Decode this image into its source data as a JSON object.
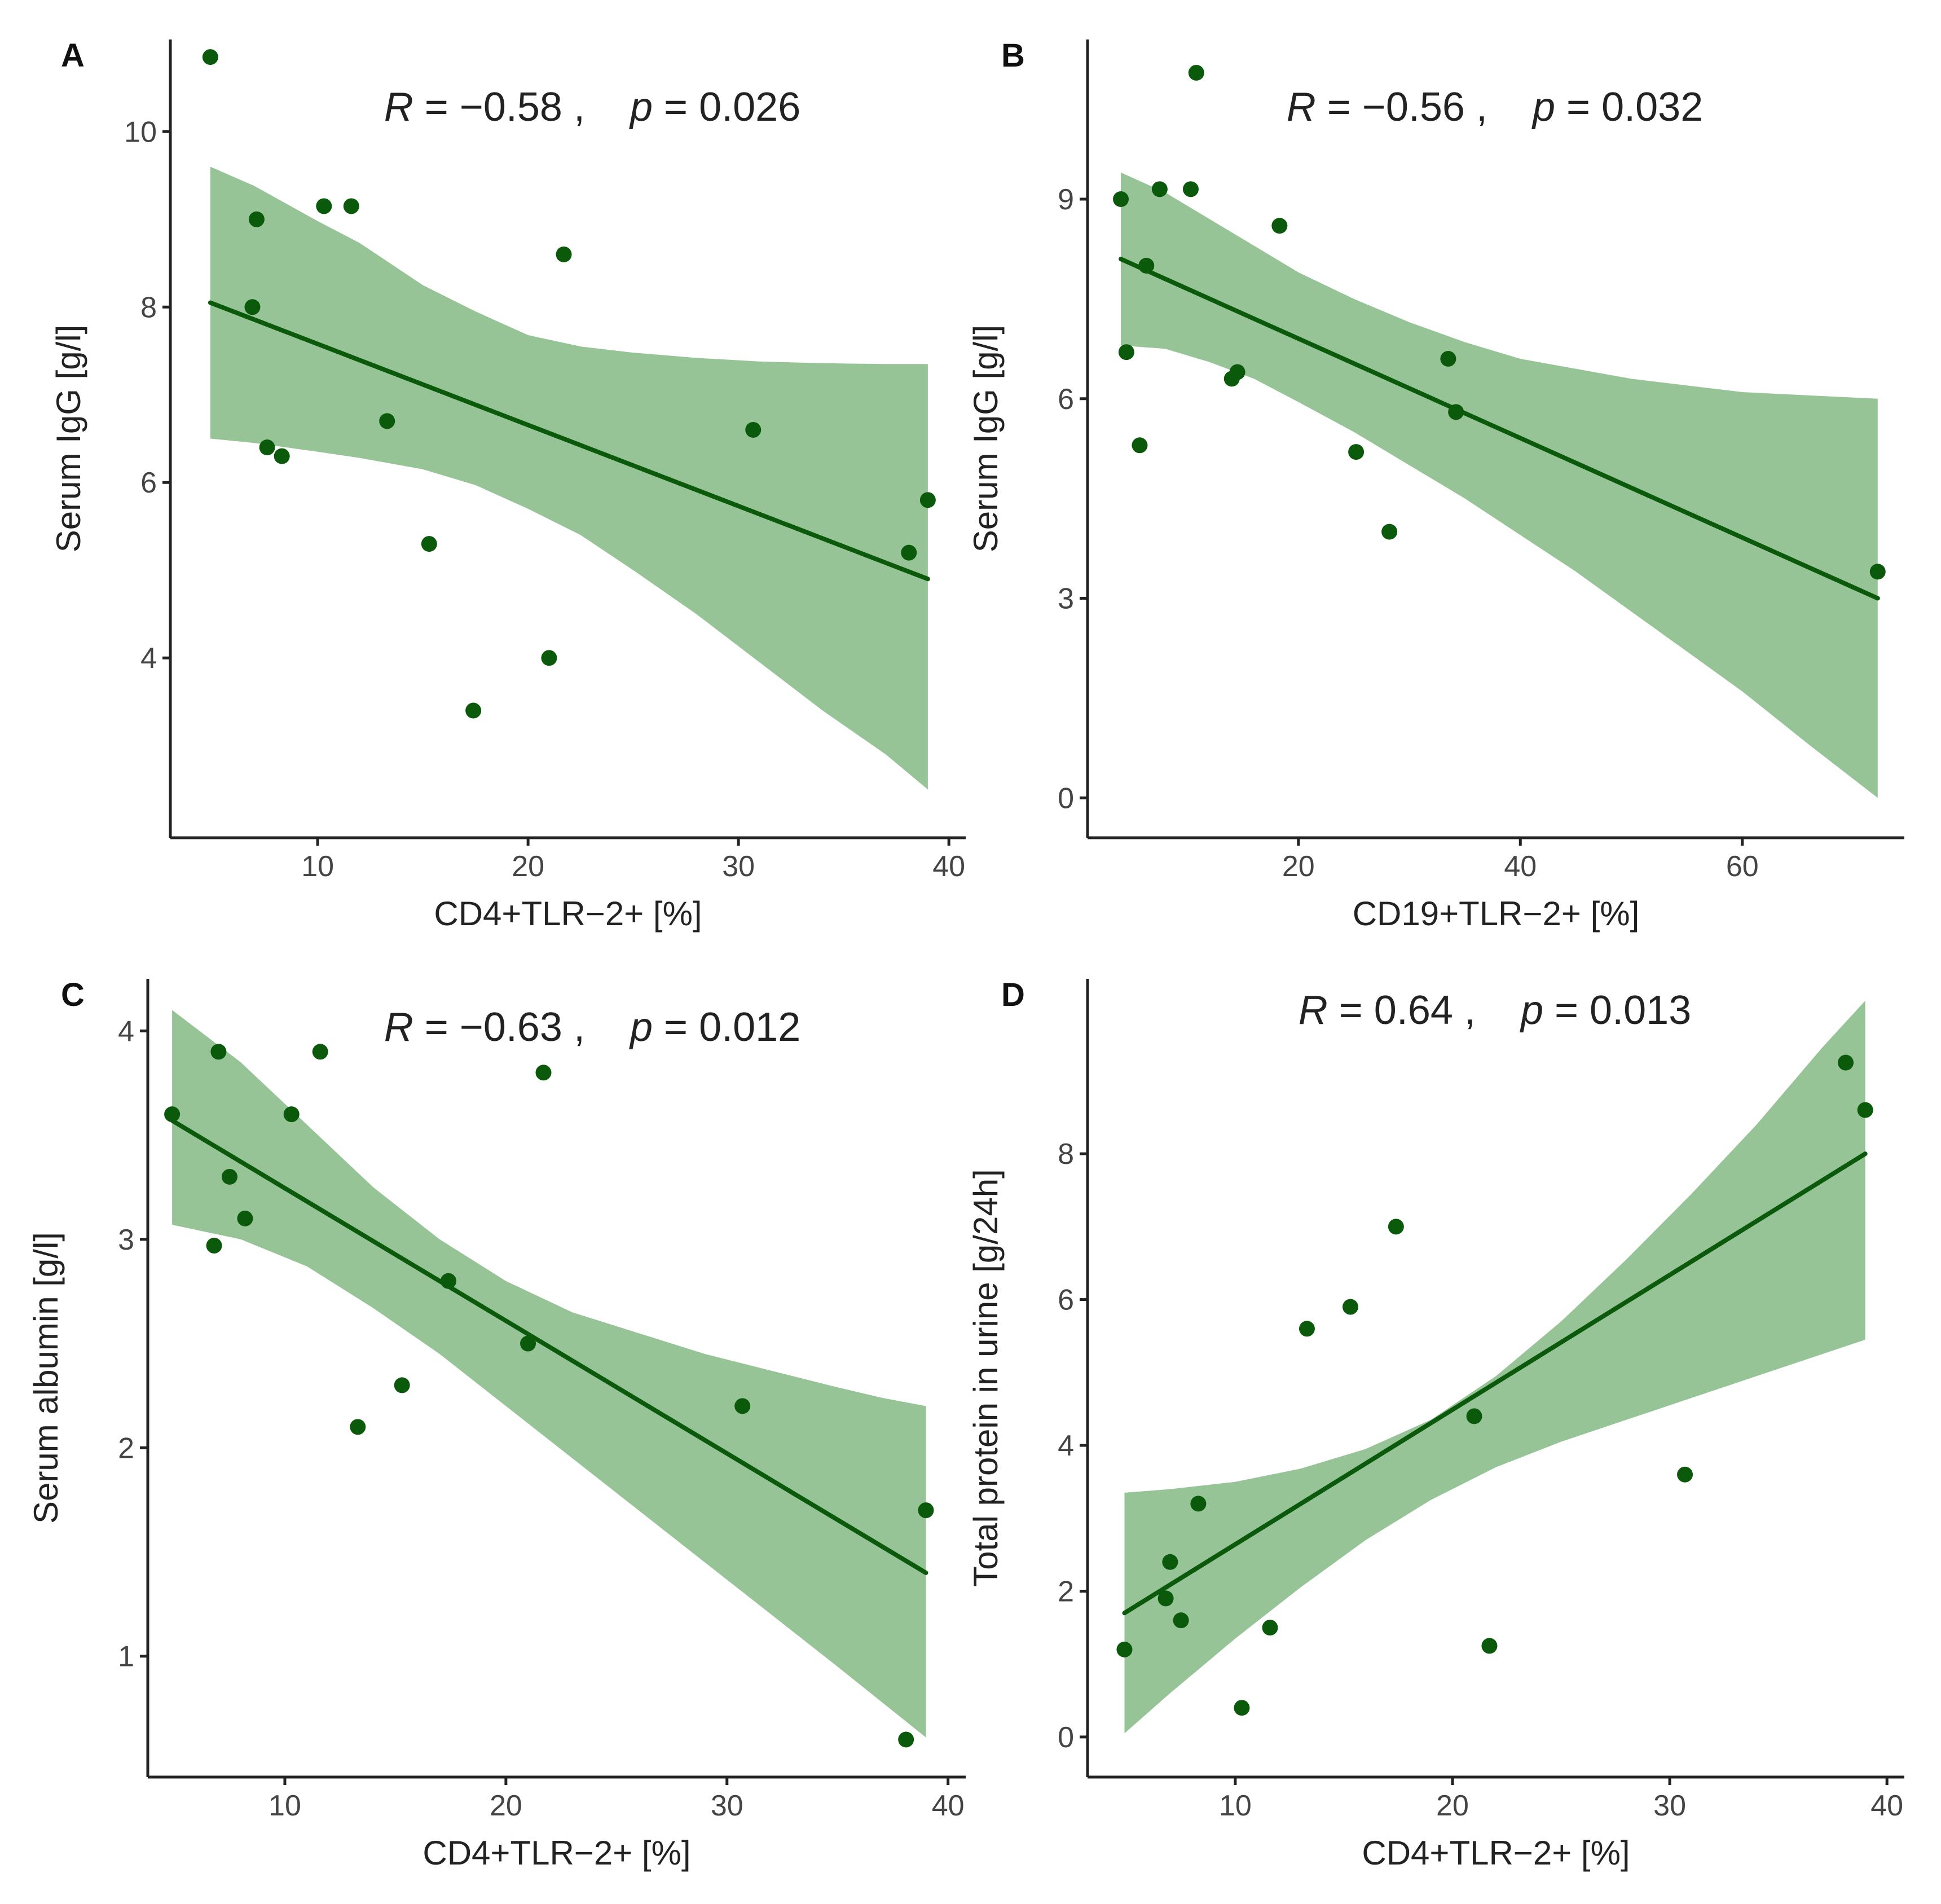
{
  "colors": {
    "point": "#0b5a0b",
    "line": "#0b5a0b",
    "band": "#97c497",
    "axis": "#222222"
  },
  "chart_data": [
    {
      "panel": "A",
      "type": "scatter",
      "stat": {
        "r_prefix": "R",
        "r_value": " = −0.58 ,",
        "p_prefix": "p",
        "p_value": " = 0.026"
      },
      "xlabel": "CD4+TLR−2+ [%]",
      "ylabel": "Serum IgG [g/l]",
      "xlim": [
        3,
        40.8
      ],
      "ylim": [
        1.95,
        11.05
      ],
      "xticks": [
        10,
        20,
        30,
        40
      ],
      "yticks": [
        4,
        6,
        8,
        10
      ],
      "points": [
        {
          "x": 4.9,
          "y": 10.85
        },
        {
          "x": 6.9,
          "y": 8.0
        },
        {
          "x": 7.1,
          "y": 9.0
        },
        {
          "x": 7.6,
          "y": 6.4
        },
        {
          "x": 8.3,
          "y": 6.3
        },
        {
          "x": 10.3,
          "y": 9.15
        },
        {
          "x": 11.6,
          "y": 9.15
        },
        {
          "x": 13.3,
          "y": 6.7
        },
        {
          "x": 15.3,
          "y": 5.3
        },
        {
          "x": 17.4,
          "y": 3.4
        },
        {
          "x": 21.0,
          "y": 4.0
        },
        {
          "x": 21.7,
          "y": 8.6
        },
        {
          "x": 30.7,
          "y": 6.6
        },
        {
          "x": 38.1,
          "y": 5.2
        },
        {
          "x": 39.0,
          "y": 5.8
        }
      ],
      "fit": {
        "x": [
          4.9,
          39.0
        ],
        "y": [
          8.05,
          4.9
        ]
      },
      "band": {
        "x": [
          4.9,
          7.0,
          10.0,
          12.0,
          15.0,
          17.5,
          20.0,
          22.5,
          25.0,
          28.0,
          31.0,
          34.0,
          37.0,
          39.0
        ],
        "lower": [
          6.5,
          6.45,
          6.35,
          6.28,
          6.15,
          5.97,
          5.7,
          5.4,
          5.0,
          4.5,
          3.95,
          3.4,
          2.9,
          2.5
        ],
        "upper": [
          9.6,
          9.38,
          8.98,
          8.73,
          8.25,
          7.95,
          7.68,
          7.55,
          7.48,
          7.42,
          7.38,
          7.36,
          7.35,
          7.35
        ]
      }
    },
    {
      "panel": "B",
      "type": "scatter",
      "stat": {
        "r_prefix": "R",
        "r_value": " = −0.56 ,",
        "p_prefix": "p",
        "p_value": " = 0.032"
      },
      "xlabel": "CD19+TLR−2+ [%]",
      "ylabel": "Serum IgG [g/l]",
      "xlim": [
        1,
        74.6
      ],
      "ylim": [
        -0.6,
        11.4
      ],
      "xticks": [
        20,
        40,
        60
      ],
      "yticks": [
        0,
        3,
        6,
        9
      ],
      "points": [
        {
          "x": 4.0,
          "y": 9.0
        },
        {
          "x": 4.5,
          "y": 6.7
        },
        {
          "x": 5.7,
          "y": 5.3
        },
        {
          "x": 6.3,
          "y": 8.0
        },
        {
          "x": 7.5,
          "y": 9.15
        },
        {
          "x": 10.3,
          "y": 9.15
        },
        {
          "x": 10.8,
          "y": 10.9
        },
        {
          "x": 14.0,
          "y": 6.3
        },
        {
          "x": 14.5,
          "y": 6.4
        },
        {
          "x": 18.3,
          "y": 8.6
        },
        {
          "x": 25.2,
          "y": 5.2
        },
        {
          "x": 28.2,
          "y": 4.0
        },
        {
          "x": 33.5,
          "y": 6.6
        },
        {
          "x": 34.2,
          "y": 5.8
        },
        {
          "x": 72.2,
          "y": 3.4
        }
      ],
      "fit": {
        "x": [
          4.0,
          72.2
        ],
        "y": [
          8.1,
          3.0
        ]
      },
      "band": {
        "x": [
          4.0,
          8.0,
          12.0,
          16.0,
          20.0,
          25.0,
          30.0,
          35.0,
          40.0,
          45.0,
          50.0,
          55.0,
          60.0,
          66.0,
          72.2
        ],
        "lower": [
          6.8,
          6.75,
          6.55,
          6.3,
          5.95,
          5.5,
          5.0,
          4.5,
          3.95,
          3.4,
          2.8,
          2.2,
          1.6,
          0.8,
          0.0
        ],
        "upper": [
          9.4,
          9.1,
          8.7,
          8.3,
          7.9,
          7.5,
          7.15,
          6.85,
          6.6,
          6.45,
          6.3,
          6.2,
          6.1,
          6.05,
          6.0
        ]
      }
    },
    {
      "panel": "C",
      "type": "scatter",
      "stat": {
        "r_prefix": "R",
        "r_value": " = −0.63 ,",
        "p_prefix": "p",
        "p_value": " = 0.012"
      },
      "xlabel": "CD4+TLR−2+ [%]",
      "ylabel": "Serum albumin [g/l]",
      "xlim": [
        3.8,
        40.8
      ],
      "ylim": [
        0.42,
        4.25
      ],
      "xticks": [
        10,
        20,
        30,
        40
      ],
      "yticks": [
        1,
        2,
        3,
        4
      ],
      "points": [
        {
          "x": 4.9,
          "y": 3.6
        },
        {
          "x": 6.8,
          "y": 2.97
        },
        {
          "x": 7.0,
          "y": 3.9
        },
        {
          "x": 7.5,
          "y": 3.3
        },
        {
          "x": 8.2,
          "y": 3.1
        },
        {
          "x": 10.3,
          "y": 3.6
        },
        {
          "x": 11.6,
          "y": 3.9
        },
        {
          "x": 13.3,
          "y": 2.1
        },
        {
          "x": 15.3,
          "y": 2.3
        },
        {
          "x": 17.4,
          "y": 2.8
        },
        {
          "x": 21.0,
          "y": 2.5
        },
        {
          "x": 21.7,
          "y": 3.8
        },
        {
          "x": 30.7,
          "y": 2.2
        },
        {
          "x": 38.1,
          "y": 0.6
        },
        {
          "x": 39.0,
          "y": 1.7
        }
      ],
      "fit": {
        "x": [
          4.9,
          39.0
        ],
        "y": [
          3.57,
          1.4
        ]
      },
      "band": {
        "x": [
          4.9,
          8.0,
          11.0,
          14.0,
          17.0,
          20.0,
          23.0,
          26.0,
          29.0,
          32.0,
          35.0,
          37.0,
          39.0
        ],
        "lower": [
          3.07,
          3.0,
          2.87,
          2.67,
          2.45,
          2.2,
          1.95,
          1.7,
          1.45,
          1.2,
          0.95,
          0.78,
          0.61
        ],
        "upper": [
          4.1,
          3.85,
          3.55,
          3.25,
          3.0,
          2.8,
          2.65,
          2.55,
          2.45,
          2.37,
          2.29,
          2.24,
          2.2
        ]
      }
    },
    {
      "panel": "D",
      "type": "scatter",
      "stat": {
        "r_prefix": "R",
        "r_value": " = 0.64 ,",
        "p_prefix": "p",
        "p_value": " = 0.013"
      },
      "xlabel": "CD4+TLR−2+ [%]",
      "ylabel": "Total protein in urine [g/24h]",
      "xlim": [
        3.2,
        40.8
      ],
      "ylim": [
        -0.55,
        10.4
      ],
      "xticks": [
        10,
        20,
        30,
        40
      ],
      "yticks": [
        0,
        2,
        4,
        6,
        8
      ],
      "points": [
        {
          "x": 4.9,
          "y": 1.2
        },
        {
          "x": 6.8,
          "y": 1.9
        },
        {
          "x": 7.0,
          "y": 2.4
        },
        {
          "x": 7.5,
          "y": 1.6
        },
        {
          "x": 8.3,
          "y": 3.2
        },
        {
          "x": 10.3,
          "y": 0.4
        },
        {
          "x": 11.6,
          "y": 1.5
        },
        {
          "x": 13.3,
          "y": 5.6
        },
        {
          "x": 15.3,
          "y": 5.9
        },
        {
          "x": 17.4,
          "y": 7.0
        },
        {
          "x": 21.0,
          "y": 4.4
        },
        {
          "x": 21.7,
          "y": 1.25
        },
        {
          "x": 30.7,
          "y": 3.6
        },
        {
          "x": 38.1,
          "y": 9.25
        },
        {
          "x": 39.0,
          "y": 8.6
        }
      ],
      "fit": {
        "x": [
          4.9,
          39.0
        ],
        "y": [
          1.7,
          8.0
        ]
      },
      "band": {
        "x": [
          4.9,
          7.0,
          10.0,
          13.0,
          16.0,
          19.0,
          22.0,
          25.0,
          28.0,
          31.0,
          34.0,
          37.0,
          39.0
        ],
        "lower": [
          0.05,
          0.6,
          1.35,
          2.05,
          2.7,
          3.25,
          3.7,
          4.05,
          4.35,
          4.65,
          4.95,
          5.25,
          5.45
        ],
        "upper": [
          3.35,
          3.4,
          3.5,
          3.68,
          3.95,
          4.35,
          4.95,
          5.7,
          6.55,
          7.45,
          8.4,
          9.45,
          10.1
        ]
      }
    }
  ]
}
